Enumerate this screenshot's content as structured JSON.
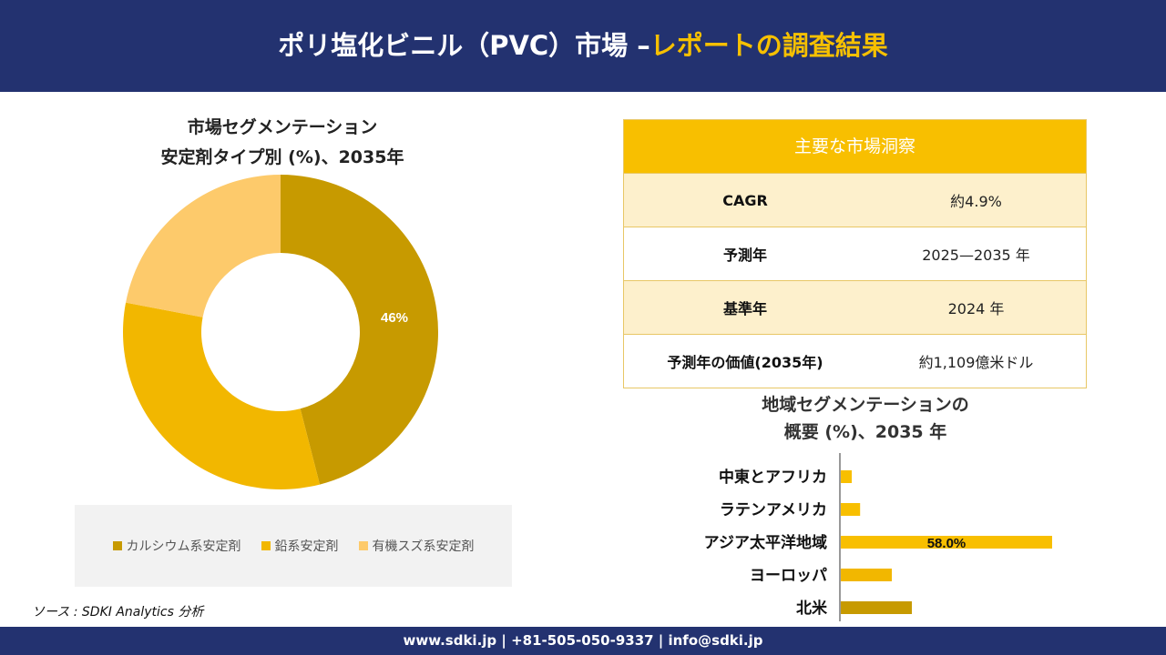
{
  "header": {
    "title_white": "ポリ塩化ビニル（PVC）市場 –",
    "title_yellow": "レポートの調査結果"
  },
  "colors": {
    "navy": "#233270",
    "gold_dark": "#c79a00",
    "gold": "#f2b700",
    "gold_light": "#fdca6b",
    "table_head": "#f8bf00",
    "table_alt": "#fdf0cc"
  },
  "donut": {
    "title_line1": "市場セグメンテーション",
    "title_line2": "安定剤タイプ別 (%)、2035年"
  },
  "insights": {
    "heading": "主要な市場洞察",
    "rows": [
      {
        "label": "CAGR",
        "value": "約4.9%"
      },
      {
        "label": "予測年",
        "value": "2025—2035 年"
      },
      {
        "label": "基準年",
        "value": "2024 年"
      },
      {
        "label": "予測年の価値(2035年)",
        "value": "約1,109億米ドル"
      }
    ]
  },
  "region": {
    "title_line1": "地域セグメンテーションの",
    "title_line2": "概要 (%)、2035 年"
  },
  "source": "ソース : SDKI Analytics 分析",
  "footer": "www.sdki.jp | +81-505-050-9337 | info@sdki.jp",
  "chart_data": [
    {
      "type": "pie",
      "categories": [
        "カルシウム系安定剤",
        "鉛系安定剤",
        "有機スズ系安定剤"
      ],
      "values": [
        46,
        32,
        22
      ],
      "data_labels": [
        "46%",
        "",
        ""
      ],
      "colors": [
        "#c79a00",
        "#f2b700",
        "#fdca6b"
      ],
      "legend": "bottom"
    },
    {
      "type": "bar",
      "orientation": "horizontal",
      "categories": [
        "中東とアフリカ",
        "ラテンアメリカ",
        "アジア太平洋地域",
        "ヨーロッパ",
        "北米"
      ],
      "values": [
        3.0,
        5.3,
        58.0,
        14.0,
        19.5
      ],
      "data_labels": [
        "",
        "",
        "58.0%",
        "",
        ""
      ],
      "colors": [
        "#f8bf00",
        "#f8bf00",
        "#f8bf00",
        "#f2b700",
        "#c79a00"
      ],
      "xlim": [
        0,
        62
      ]
    }
  ]
}
